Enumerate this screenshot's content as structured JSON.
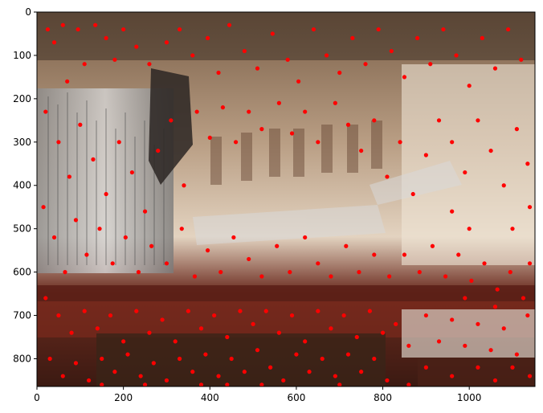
{
  "chart_data": {
    "type": "scatter",
    "title": "",
    "xlabel": "",
    "ylabel": "",
    "xlim": [
      0,
      1152
    ],
    "ylim": [
      864,
      0
    ],
    "y_inverted": true,
    "x_ticks": [
      "0",
      "200",
      "400",
      "600",
      "800",
      "1000"
    ],
    "y_ticks": [
      "0",
      "100",
      "200",
      "300",
      "400",
      "500",
      "600",
      "700",
      "800"
    ],
    "marker_color": "#ff0000",
    "background": "photograph of a concert hall interior with organ pipes, suspended acoustic panels, stage and seating",
    "series": [
      {
        "values": [
          [
            25,
            40
          ],
          [
            40,
            70
          ],
          [
            60,
            30
          ],
          [
            70,
            160
          ],
          [
            95,
            40
          ],
          [
            110,
            120
          ],
          [
            135,
            30
          ],
          [
            160,
            60
          ],
          [
            180,
            110
          ],
          [
            200,
            40
          ],
          [
            230,
            80
          ],
          [
            260,
            120
          ],
          [
            300,
            70
          ],
          [
            330,
            40
          ],
          [
            360,
            100
          ],
          [
            395,
            60
          ],
          [
            420,
            140
          ],
          [
            445,
            30
          ],
          [
            480,
            90
          ],
          [
            510,
            130
          ],
          [
            545,
            50
          ],
          [
            580,
            110
          ],
          [
            605,
            160
          ],
          [
            640,
            40
          ],
          [
            670,
            100
          ],
          [
            700,
            140
          ],
          [
            730,
            60
          ],
          [
            760,
            120
          ],
          [
            790,
            40
          ],
          [
            820,
            90
          ],
          [
            850,
            150
          ],
          [
            880,
            60
          ],
          [
            910,
            120
          ],
          [
            940,
            40
          ],
          [
            970,
            100
          ],
          [
            1000,
            170
          ],
          [
            1030,
            60
          ],
          [
            1060,
            130
          ],
          [
            1090,
            40
          ],
          [
            1120,
            110
          ],
          [
            20,
            230
          ],
          [
            50,
            300
          ],
          [
            75,
            380
          ],
          [
            100,
            260
          ],
          [
            130,
            340
          ],
          [
            160,
            420
          ],
          [
            190,
            300
          ],
          [
            220,
            370
          ],
          [
            250,
            460
          ],
          [
            280,
            320
          ],
          [
            310,
            250
          ],
          [
            340,
            400
          ],
          [
            370,
            230
          ],
          [
            400,
            290
          ],
          [
            430,
            220
          ],
          [
            460,
            300
          ],
          [
            490,
            230
          ],
          [
            520,
            270
          ],
          [
            560,
            210
          ],
          [
            590,
            280
          ],
          [
            620,
            230
          ],
          [
            650,
            300
          ],
          [
            690,
            210
          ],
          [
            720,
            260
          ],
          [
            750,
            320
          ],
          [
            780,
            250
          ],
          [
            810,
            380
          ],
          [
            840,
            300
          ],
          [
            870,
            420
          ],
          [
            900,
            330
          ],
          [
            930,
            250
          ],
          [
            960,
            300
          ],
          [
            990,
            370
          ],
          [
            1020,
            250
          ],
          [
            1050,
            320
          ],
          [
            1080,
            400
          ],
          [
            1110,
            270
          ],
          [
            1135,
            350
          ],
          [
            1140,
            450
          ],
          [
            1100,
            500
          ],
          [
            15,
            450
          ],
          [
            40,
            520
          ],
          [
            65,
            600
          ],
          [
            90,
            480
          ],
          [
            115,
            560
          ],
          [
            145,
            500
          ],
          [
            175,
            580
          ],
          [
            205,
            520
          ],
          [
            235,
            600
          ],
          [
            265,
            540
          ],
          [
            300,
            580
          ],
          [
            335,
            500
          ],
          [
            365,
            610
          ],
          [
            395,
            550
          ],
          [
            425,
            600
          ],
          [
            455,
            520
          ],
          [
            490,
            570
          ],
          [
            520,
            610
          ],
          [
            555,
            540
          ],
          [
            585,
            600
          ],
          [
            620,
            520
          ],
          [
            650,
            580
          ],
          [
            680,
            610
          ],
          [
            715,
            540
          ],
          [
            745,
            600
          ],
          [
            780,
            560
          ],
          [
            815,
            610
          ],
          [
            850,
            560
          ],
          [
            885,
            600
          ],
          [
            915,
            540
          ],
          [
            945,
            610
          ],
          [
            975,
            560
          ],
          [
            1005,
            620
          ],
          [
            1035,
            580
          ],
          [
            1065,
            640
          ],
          [
            1095,
            600
          ],
          [
            1125,
            660
          ],
          [
            1140,
            580
          ],
          [
            1000,
            500
          ],
          [
            960,
            460
          ],
          [
            20,
            660
          ],
          [
            50,
            700
          ],
          [
            80,
            740
          ],
          [
            110,
            690
          ],
          [
            140,
            730
          ],
          [
            170,
            700
          ],
          [
            200,
            760
          ],
          [
            230,
            690
          ],
          [
            260,
            740
          ],
          [
            290,
            710
          ],
          [
            320,
            760
          ],
          [
            350,
            690
          ],
          [
            380,
            730
          ],
          [
            410,
            700
          ],
          [
            440,
            750
          ],
          [
            470,
            690
          ],
          [
            500,
            720
          ],
          [
            530,
            690
          ],
          [
            560,
            740
          ],
          [
            590,
            700
          ],
          [
            620,
            760
          ],
          [
            650,
            690
          ],
          [
            680,
            730
          ],
          [
            710,
            700
          ],
          [
            740,
            750
          ],
          [
            770,
            690
          ],
          [
            800,
            740
          ],
          [
            830,
            720
          ],
          [
            860,
            770
          ],
          [
            900,
            700
          ],
          [
            930,
            760
          ],
          [
            960,
            710
          ],
          [
            990,
            770
          ],
          [
            1020,
            720
          ],
          [
            1050,
            780
          ],
          [
            1080,
            730
          ],
          [
            1110,
            790
          ],
          [
            1135,
            700
          ],
          [
            1060,
            680
          ],
          [
            990,
            660
          ],
          [
            30,
            800
          ],
          [
            60,
            840
          ],
          [
            90,
            810
          ],
          [
            120,
            850
          ],
          [
            150,
            800
          ],
          [
            180,
            830
          ],
          [
            210,
            790
          ],
          [
            240,
            840
          ],
          [
            270,
            810
          ],
          [
            300,
            850
          ],
          [
            330,
            800
          ],
          [
            360,
            830
          ],
          [
            390,
            790
          ],
          [
            420,
            840
          ],
          [
            450,
            800
          ],
          [
            480,
            830
          ],
          [
            510,
            780
          ],
          [
            540,
            820
          ],
          [
            570,
            850
          ],
          [
            600,
            790
          ],
          [
            630,
            830
          ],
          [
            660,
            800
          ],
          [
            690,
            840
          ],
          [
            720,
            790
          ],
          [
            750,
            830
          ],
          [
            780,
            800
          ],
          [
            810,
            850
          ],
          [
            900,
            820
          ],
          [
            960,
            840
          ],
          [
            1020,
            820
          ],
          [
            1060,
            850
          ],
          [
            1100,
            820
          ],
          [
            1140,
            840
          ],
          [
            440,
            860
          ],
          [
            380,
            860
          ],
          [
            520,
            860
          ],
          [
            150,
            860
          ],
          [
            250,
            860
          ],
          [
            700,
            860
          ],
          [
            860,
            860
          ]
        ]
      }
    ]
  }
}
